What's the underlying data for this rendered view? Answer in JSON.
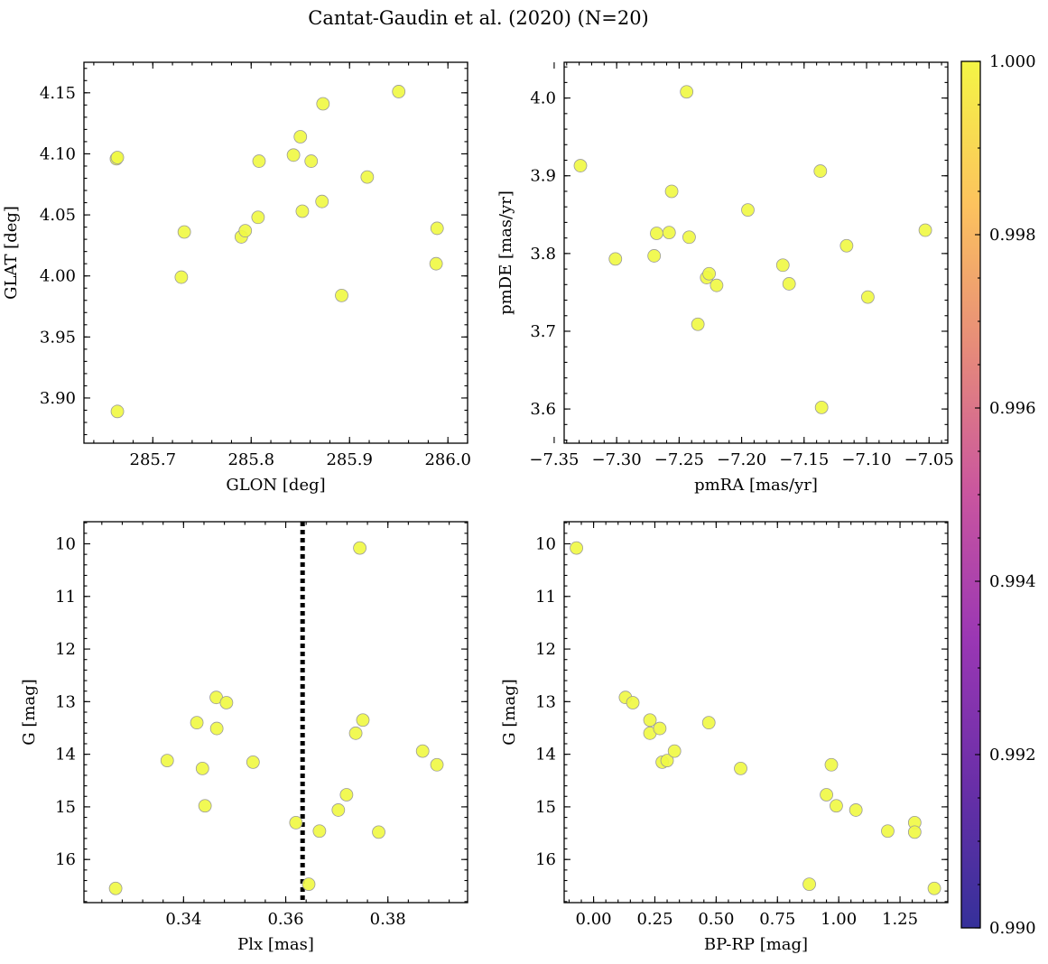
{
  "figure": {
    "title": "Cantat-Gaudin et al. (2020) (N=20)"
  },
  "colors": {
    "point_fill": "#f0f945",
    "point_edge": "#9a9a9a",
    "line": "#000000"
  },
  "colorbar": {
    "min": 0.99,
    "max": 1.0,
    "ticks": [
      "0.990",
      "0.992",
      "0.994",
      "0.996",
      "0.998",
      "1.000"
    ],
    "stops": [
      "#35309a",
      "#6a2fa8",
      "#9a37b4",
      "#c9559f",
      "#e68a7a",
      "#fcc25e",
      "#f4f545"
    ]
  },
  "chart_data": [
    {
      "type": "scatter",
      "id": "glon-glat",
      "xlabel": "GLON [deg]",
      "ylabel": "GLAT [deg]",
      "xlim": [
        285.63,
        286.02
      ],
      "ylim": [
        3.863,
        4.175
      ],
      "xticks": [
        285.7,
        285.8,
        285.9,
        286.0
      ],
      "xtick_labels": [
        "285.7",
        "285.8",
        "285.9",
        "286.0"
      ],
      "yticks": [
        3.9,
        3.95,
        4.0,
        4.05,
        4.1,
        4.15
      ],
      "ytick_labels": [
        "3.90",
        "3.95",
        "4.00",
        "4.05",
        "4.10",
        "4.15"
      ],
      "x": [
        285.663,
        285.664,
        285.664,
        285.729,
        285.732,
        285.79,
        285.794,
        285.807,
        285.808,
        285.843,
        285.85,
        285.852,
        285.861,
        285.872,
        285.873,
        285.892,
        285.918,
        285.95,
        285.988,
        285.989
      ],
      "y": [
        4.096,
        4.097,
        3.889,
        3.999,
        4.036,
        4.032,
        4.037,
        4.048,
        4.094,
        4.099,
        4.114,
        4.053,
        4.094,
        4.061,
        4.141,
        3.984,
        4.081,
        4.151,
        4.01,
        4.039
      ]
    },
    {
      "type": "scatter",
      "id": "pmra-pmde",
      "xlabel": "pmRA [mas/yr]",
      "ylabel": "pmDE [mas/yr]",
      "xlim": [
        -7.342,
        -7.035
      ],
      "ylim": [
        3.556,
        4.046
      ],
      "xticks": [
        -7.35,
        -7.3,
        -7.25,
        -7.2,
        -7.15,
        -7.1,
        -7.05
      ],
      "xtick_labels": [
        "−7.35",
        "−7.30",
        "−7.25",
        "−7.20",
        "−7.15",
        "−7.10",
        "−7.05"
      ],
      "yticks": [
        3.6,
        3.7,
        3.8,
        3.9,
        4.0
      ],
      "ytick_labels": [
        "3.6",
        "3.7",
        "3.8",
        "3.9",
        "4.0"
      ],
      "x": [
        -7.329,
        -7.301,
        -7.27,
        -7.268,
        -7.258,
        -7.256,
        -7.244,
        -7.242,
        -7.235,
        -7.228,
        -7.226,
        -7.22,
        -7.195,
        -7.167,
        -7.162,
        -7.137,
        -7.136,
        -7.116,
        -7.099,
        -7.053
      ],
      "y": [
        3.913,
        3.793,
        3.797,
        3.826,
        3.827,
        3.88,
        4.008,
        3.821,
        3.709,
        3.769,
        3.774,
        3.759,
        3.856,
        3.785,
        3.761,
        3.906,
        3.602,
        3.81,
        3.744,
        3.83
      ]
    },
    {
      "type": "scatter",
      "id": "plx-g",
      "xlabel": "Plx [mas]",
      "ylabel": "G [mag]",
      "xlim": [
        0.3205,
        0.3956
      ],
      "ylim": [
        16.82,
        9.58
      ],
      "invert_y": true,
      "xticks": [
        0.34,
        0.36,
        0.38
      ],
      "xtick_labels": [
        "0.34",
        "0.36",
        "0.38"
      ],
      "yticks": [
        10,
        11,
        12,
        13,
        14,
        15,
        16
      ],
      "ytick_labels": [
        "10",
        "11",
        "12",
        "13",
        "14",
        "15",
        "16"
      ],
      "vline": 0.3633,
      "x": [
        0.3267,
        0.3368,
        0.3426,
        0.3437,
        0.3442,
        0.3464,
        0.3465,
        0.3484,
        0.3536,
        0.362,
        0.3645,
        0.3666,
        0.3703,
        0.3719,
        0.3737,
        0.3745,
        0.3751,
        0.3782,
        0.3868,
        0.3896
      ],
      "y": [
        16.55,
        14.12,
        13.4,
        14.27,
        14.98,
        12.92,
        13.51,
        13.02,
        14.15,
        15.3,
        16.47,
        15.46,
        15.06,
        14.77,
        13.6,
        10.08,
        13.35,
        15.48,
        13.94,
        14.2
      ]
    },
    {
      "type": "scatter",
      "id": "bprp-g",
      "xlabel": "BP-RP [mag]",
      "ylabel": "G [mag]",
      "xlim": [
        -0.12,
        1.445
      ],
      "ylim": [
        16.82,
        9.58
      ],
      "invert_y": true,
      "xticks": [
        0.0,
        0.25,
        0.5,
        0.75,
        1.0,
        1.25
      ],
      "xtick_labels": [
        "0.00",
        "0.25",
        "0.50",
        "0.75",
        "1.00",
        "1.25"
      ],
      "yticks": [
        10,
        11,
        12,
        13,
        14,
        15,
        16
      ],
      "ytick_labels": [
        "10",
        "11",
        "12",
        "13",
        "14",
        "15",
        "16"
      ],
      "x": [
        -0.07,
        0.13,
        0.16,
        0.23,
        0.23,
        0.27,
        0.28,
        0.3,
        0.33,
        0.47,
        0.6,
        0.88,
        0.95,
        0.97,
        0.99,
        1.07,
        1.2,
        1.31,
        1.31,
        1.39
      ],
      "y": [
        10.08,
        12.92,
        13.02,
        13.35,
        13.6,
        13.51,
        14.15,
        14.12,
        13.94,
        13.4,
        14.27,
        16.47,
        14.77,
        14.2,
        14.98,
        15.06,
        15.46,
        15.3,
        15.48,
        16.55
      ]
    }
  ]
}
